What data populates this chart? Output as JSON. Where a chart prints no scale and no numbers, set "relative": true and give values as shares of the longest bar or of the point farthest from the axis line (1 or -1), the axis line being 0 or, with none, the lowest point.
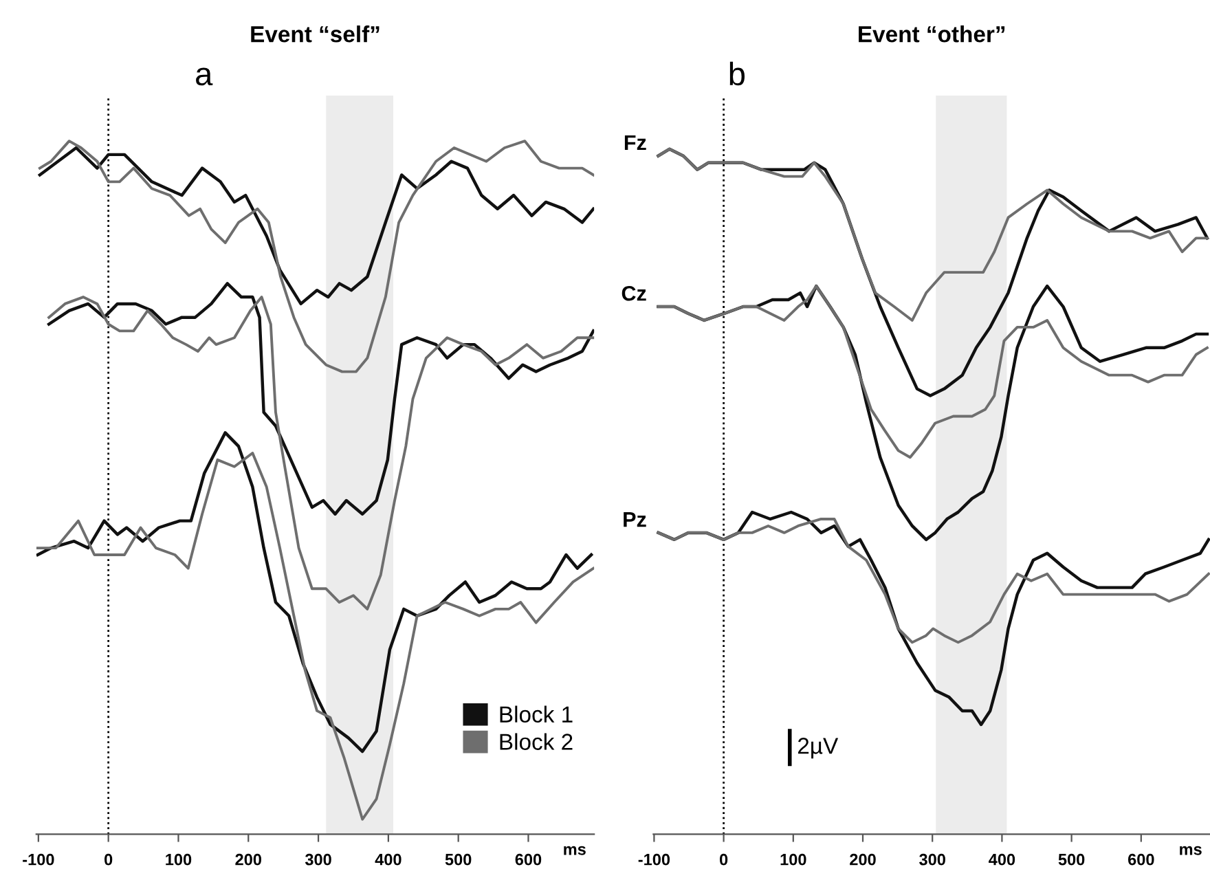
{
  "chart_data": [
    {
      "type": "line",
      "title": "Event “self”",
      "xlabel": "ms",
      "relative": true,
      "legend": "bottom right",
      "xlim": [
        -103,
        694
      ],
      "xticks": [
        -100,
        0,
        100,
        200,
        300,
        400,
        500,
        600
      ],
      "ref_lines": [
        {
          "axis": "x",
          "value": 0,
          "color": "#000000",
          "line_style": "dotted"
        }
      ],
      "bands": [
        {
          "axis": "x",
          "from": 311,
          "to": 407,
          "color": "#ececec"
        }
      ],
      "annotations": [
        "a"
      ],
      "series": [
        {
          "name": "Block 1",
          "color": "#111111",
          "x": [
            -98,
            -72,
            -46,
            -16,
            0,
            23,
            62,
            105,
            134,
            160,
            180,
            196,
            226,
            245,
            275,
            298,
            314,
            330,
            347,
            370,
            396,
            419,
            441,
            468,
            490,
            513,
            533,
            556,
            579,
            605,
            625,
            651,
            677,
            693
          ],
          "values": [
            0.95,
            0.97,
            0.99,
            0.96,
            0.98,
            0.98,
            0.94,
            0.92,
            0.96,
            0.94,
            0.91,
            0.92,
            0.86,
            0.81,
            0.76,
            0.78,
            0.77,
            0.79,
            0.78,
            0.8,
            0.88,
            0.95,
            0.93,
            0.95,
            0.97,
            0.96,
            0.92,
            0.9,
            0.92,
            0.89,
            0.91,
            0.9,
            0.88,
            0.9
          ]
        },
        {
          "name": "Block 2",
          "color": "#6e6e6e",
          "x": [
            -98,
            -82,
            -56,
            -39,
            -16,
            0,
            16,
            36,
            62,
            88,
            115,
            131,
            147,
            167,
            186,
            213,
            229,
            246,
            265,
            282,
            311,
            334,
            354,
            370,
            396,
            415,
            435,
            468,
            494,
            540,
            566,
            595,
            618,
            644,
            677,
            693
          ],
          "values": [
            0.96,
            0.97,
            1.0,
            0.99,
            0.97,
            0.94,
            0.94,
            0.96,
            0.93,
            0.92,
            0.89,
            0.9,
            0.87,
            0.85,
            0.88,
            0.9,
            0.88,
            0.8,
            0.74,
            0.7,
            0.67,
            0.66,
            0.66,
            0.68,
            0.77,
            0.88,
            0.92,
            0.97,
            0.99,
            0.97,
            0.99,
            1.0,
            0.97,
            0.96,
            0.96,
            0.95
          ]
        },
        {
          "color": "#111111",
          "x": [
            -85,
            -56,
            -29,
            -6,
            13,
            39,
            62,
            82,
            105,
            124,
            147,
            170,
            190,
            206,
            216,
            222,
            239,
            265,
            291,
            307,
            324,
            340,
            363,
            383,
            399,
            409,
            419,
            441,
            468,
            484,
            507,
            523,
            546,
            572,
            592,
            611,
            631,
            657,
            677,
            693
          ],
          "values": [
            0.73,
            0.75,
            0.76,
            0.74,
            0.76,
            0.76,
            0.75,
            0.73,
            0.74,
            0.74,
            0.76,
            0.79,
            0.77,
            0.77,
            0.74,
            0.6,
            0.58,
            0.52,
            0.46,
            0.47,
            0.45,
            0.47,
            0.45,
            0.47,
            0.53,
            0.62,
            0.7,
            0.71,
            0.7,
            0.68,
            0.7,
            0.7,
            0.68,
            0.65,
            0.67,
            0.66,
            0.67,
            0.68,
            0.69,
            0.72
          ]
        },
        {
          "color": "#6e6e6e",
          "x": [
            -85,
            -62,
            -36,
            -16,
            0,
            16,
            36,
            56,
            75,
            92,
            111,
            128,
            144,
            154,
            180,
            203,
            219,
            232,
            239,
            252,
            272,
            291,
            311,
            330,
            350,
            370,
            389,
            409,
            425,
            435,
            454,
            484,
            507,
            533,
            553,
            572,
            598,
            621,
            647,
            670,
            693
          ],
          "values": [
            0.74,
            0.76,
            0.77,
            0.76,
            0.73,
            0.72,
            0.72,
            0.75,
            0.73,
            0.71,
            0.7,
            0.69,
            0.71,
            0.7,
            0.71,
            0.75,
            0.77,
            0.73,
            0.6,
            0.52,
            0.4,
            0.34,
            0.34,
            0.32,
            0.33,
            0.31,
            0.36,
            0.47,
            0.55,
            0.62,
            0.68,
            0.71,
            0.7,
            0.69,
            0.67,
            0.68,
            0.7,
            0.68,
            0.69,
            0.71,
            0.71
          ]
        },
        {
          "color": "#111111",
          "x": [
            -101,
            -82,
            -49,
            -29,
            -6,
            13,
            26,
            49,
            72,
            102,
            118,
            137,
            167,
            186,
            206,
            222,
            239,
            258,
            278,
            298,
            317,
            343,
            363,
            383,
            402,
            422,
            441,
            468,
            487,
            510,
            530,
            553,
            576,
            598,
            618,
            631,
            654,
            670,
            690
          ],
          "values": [
            0.39,
            0.4,
            0.41,
            0.4,
            0.44,
            0.42,
            0.43,
            0.41,
            0.43,
            0.44,
            0.44,
            0.51,
            0.57,
            0.55,
            0.49,
            0.4,
            0.32,
            0.3,
            0.23,
            0.18,
            0.14,
            0.12,
            0.1,
            0.13,
            0.25,
            0.31,
            0.3,
            0.31,
            0.33,
            0.35,
            0.32,
            0.33,
            0.35,
            0.34,
            0.34,
            0.35,
            0.39,
            0.37,
            0.39
          ]
        },
        {
          "color": "#6e6e6e",
          "x": [
            -101,
            -75,
            -43,
            -20,
            3,
            23,
            46,
            68,
            95,
            114,
            134,
            156,
            180,
            206,
            226,
            245,
            265,
            281,
            298,
            317,
            337,
            363,
            383,
            402,
            422,
            441,
            461,
            481,
            507,
            530,
            553,
            572,
            589,
            611,
            637,
            664,
            693
          ],
          "values": [
            0.4,
            0.4,
            0.44,
            0.39,
            0.39,
            0.39,
            0.43,
            0.4,
            0.39,
            0.37,
            0.45,
            0.53,
            0.52,
            0.54,
            0.49,
            0.4,
            0.3,
            0.22,
            0.16,
            0.15,
            0.09,
            0.0,
            0.03,
            0.11,
            0.2,
            0.3,
            0.31,
            0.32,
            0.31,
            0.3,
            0.31,
            0.31,
            0.32,
            0.29,
            0.32,
            0.35,
            0.37
          ]
        }
      ]
    },
    {
      "type": "line",
      "title": "Event “other”",
      "xlabel": "ms",
      "relative": true,
      "xlim": [
        -101,
        699
      ],
      "xticks": [
        -100,
        0,
        100,
        200,
        300,
        400,
        500,
        600
      ],
      "ref_lines": [
        {
          "axis": "x",
          "value": 0,
          "color": "#000000",
          "line_style": "dotted"
        }
      ],
      "bands": [
        {
          "axis": "x",
          "from": 305,
          "to": 407,
          "color": "#ececec"
        }
      ],
      "annotations": [
        "b",
        "2µV",
        "Fz",
        "Cz",
        "Pz"
      ],
      "series": [
        {
          "color": "#111111",
          "x": [
            -94,
            -78,
            -58,
            -38,
            -22,
            1,
            28,
            54,
            74,
            97,
            116,
            130,
            146,
            172,
            199,
            225,
            251,
            278,
            297,
            317,
            343,
            363,
            383,
            409,
            436,
            452,
            468,
            488,
            514,
            554,
            593,
            620,
            653,
            679,
            695
          ],
          "values": [
            0.99,
            1.0,
            0.99,
            0.97,
            0.98,
            0.98,
            0.98,
            0.97,
            0.97,
            0.97,
            0.97,
            0.98,
            0.97,
            0.92,
            0.84,
            0.77,
            0.71,
            0.65,
            0.64,
            0.65,
            0.67,
            0.71,
            0.74,
            0.79,
            0.87,
            0.91,
            0.94,
            0.93,
            0.91,
            0.88,
            0.9,
            0.88,
            0.89,
            0.9,
            0.87
          ]
        },
        {
          "color": "#6e6e6e",
          "x": [
            -94,
            -78,
            -58,
            -38,
            -22,
            1,
            28,
            54,
            87,
            113,
            130,
            146,
            172,
            199,
            218,
            245,
            271,
            291,
            317,
            350,
            373,
            389,
            409,
            436,
            465,
            488,
            514,
            554,
            587,
            613,
            640,
            659,
            679,
            695
          ],
          "values": [
            0.99,
            1.0,
            0.99,
            0.97,
            0.98,
            0.98,
            0.98,
            0.97,
            0.96,
            0.96,
            0.98,
            0.96,
            0.92,
            0.84,
            0.79,
            0.77,
            0.75,
            0.79,
            0.82,
            0.82,
            0.82,
            0.85,
            0.9,
            0.92,
            0.94,
            0.92,
            0.9,
            0.88,
            0.88,
            0.87,
            0.88,
            0.85,
            0.87,
            0.87
          ]
        },
        {
          "color": "#111111",
          "x": [
            -94,
            -71,
            -51,
            -28,
            1,
            28,
            47,
            70,
            93,
            110,
            120,
            133,
            153,
            172,
            189,
            205,
            225,
            251,
            271,
            291,
            304,
            321,
            337,
            357,
            373,
            386,
            399,
            409,
            422,
            445,
            465,
            488,
            514,
            541,
            574,
            607,
            633,
            659,
            679,
            695
          ],
          "values": [
            0.77,
            0.77,
            0.76,
            0.75,
            0.76,
            0.77,
            0.77,
            0.78,
            0.78,
            0.79,
            0.77,
            0.8,
            0.77,
            0.74,
            0.7,
            0.63,
            0.55,
            0.48,
            0.45,
            0.43,
            0.44,
            0.46,
            0.47,
            0.49,
            0.5,
            0.53,
            0.58,
            0.64,
            0.71,
            0.77,
            0.8,
            0.77,
            0.71,
            0.69,
            0.7,
            0.71,
            0.71,
            0.72,
            0.73,
            0.73
          ]
        },
        {
          "color": "#6e6e6e",
          "x": [
            -94,
            -71,
            -51,
            -28,
            1,
            28,
            47,
            67,
            87,
            107,
            120,
            133,
            153,
            172,
            192,
            212,
            231,
            251,
            268,
            284,
            304,
            330,
            357,
            376,
            389,
            403,
            422,
            445,
            465,
            488,
            514,
            554,
            587,
            610,
            633,
            659,
            679,
            695
          ],
          "values": [
            0.77,
            0.77,
            0.76,
            0.75,
            0.76,
            0.77,
            0.77,
            0.76,
            0.75,
            0.77,
            0.78,
            0.8,
            0.77,
            0.74,
            0.68,
            0.62,
            0.59,
            0.56,
            0.55,
            0.57,
            0.6,
            0.61,
            0.61,
            0.62,
            0.64,
            0.72,
            0.74,
            0.74,
            0.75,
            0.71,
            0.69,
            0.67,
            0.67,
            0.66,
            0.67,
            0.67,
            0.7,
            0.71
          ]
        },
        {
          "color": "#111111",
          "x": [
            -94,
            -71,
            -51,
            -25,
            0,
            21,
            41,
            67,
            97,
            120,
            140,
            159,
            179,
            196,
            212,
            232,
            251,
            278,
            304,
            324,
            343,
            357,
            370,
            383,
            399,
            409,
            422,
            445,
            465,
            488,
            514,
            537,
            564,
            587,
            606,
            633,
            659,
            685,
            697
          ],
          "values": [
            0.44,
            0.43,
            0.44,
            0.44,
            0.43,
            0.44,
            0.47,
            0.46,
            0.47,
            0.46,
            0.44,
            0.45,
            0.42,
            0.43,
            0.4,
            0.36,
            0.3,
            0.25,
            0.21,
            0.2,
            0.18,
            0.18,
            0.16,
            0.18,
            0.24,
            0.3,
            0.35,
            0.4,
            0.41,
            0.39,
            0.37,
            0.36,
            0.36,
            0.36,
            0.38,
            0.39,
            0.4,
            0.41,
            0.43
          ]
        },
        {
          "color": "#6e6e6e",
          "x": [
            -94,
            -71,
            -51,
            -25,
            0,
            21,
            41,
            64,
            87,
            107,
            140,
            159,
            179,
            205,
            232,
            251,
            271,
            291,
            301,
            317,
            337,
            357,
            383,
            403,
            422,
            442,
            465,
            488,
            514,
            541,
            567,
            593,
            620,
            640,
            666,
            697
          ],
          "values": [
            0.44,
            0.43,
            0.44,
            0.44,
            0.43,
            0.44,
            0.44,
            0.45,
            0.44,
            0.45,
            0.46,
            0.46,
            0.42,
            0.4,
            0.35,
            0.3,
            0.28,
            0.29,
            0.3,
            0.29,
            0.28,
            0.29,
            0.31,
            0.35,
            0.38,
            0.37,
            0.38,
            0.35,
            0.35,
            0.35,
            0.35,
            0.35,
            0.35,
            0.34,
            0.35,
            0.38
          ]
        }
      ]
    }
  ]
}
